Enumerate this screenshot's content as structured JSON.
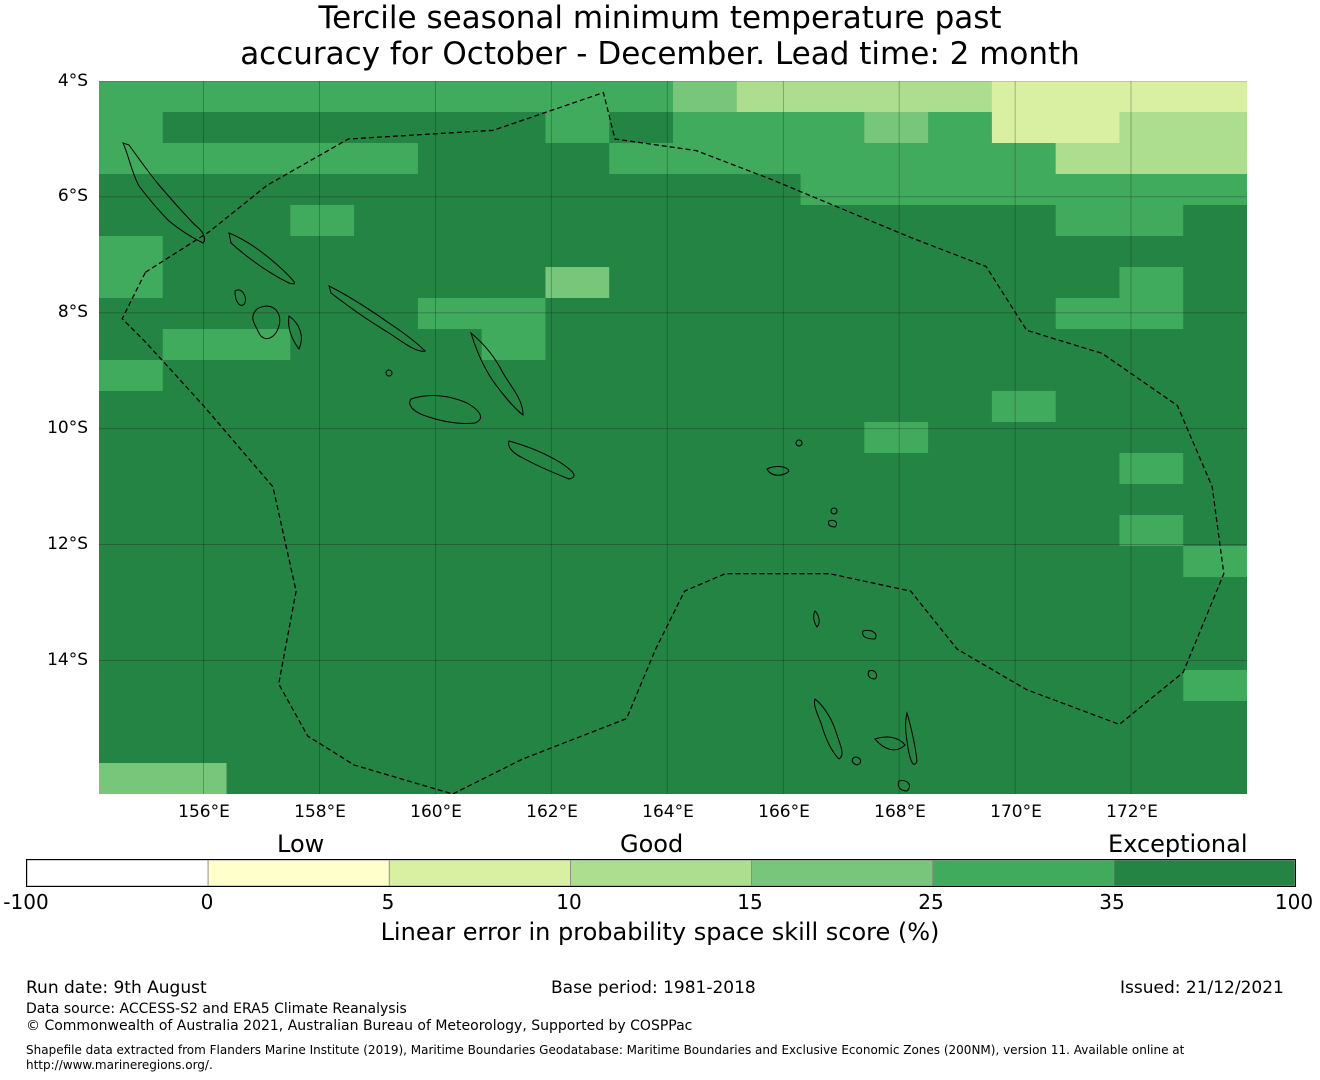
{
  "title": {
    "line1": "Tercile seasonal minimum temperature past",
    "line2": "accuracy for October - December. Lead time: 2 month"
  },
  "map": {
    "lat_labels": [
      "4°S",
      "6°S",
      "8°S",
      "10°S",
      "12°S",
      "14°S"
    ],
    "lon_labels": [
      "156°E",
      "158°E",
      "160°E",
      "162°E",
      "164°E",
      "166°E",
      "168°E",
      "170°E",
      "172°E"
    ],
    "lon_range": [
      154.2,
      174.0
    ],
    "lat_range": [
      -16.3,
      -4.0
    ],
    "grid_step_deg": 0.83,
    "skill_grid_rows": [
      "444444444322221111",
      "455555545444341122",
      "444445554444444222",
      "555555555554444444",
      "555455555555555445",
      "455555555555555555",
      "455555535555555545",
      "555554455555555445",
      "544555455555555555",
      "455555555555555555",
      "555555555555554555",
      "555555555555455555",
      "555555555555555545",
      "555555555555555555",
      "555555555555555545",
      "555555555555555554",
      "555555555555555555",
      "555555555555555555",
      "555555555555555555",
      "555555555555555554",
      "555555555555555555",
      "555555555555555555",
      "335555555555555555"
    ],
    "eez_boundary_lonlat": [
      [
        155.0,
        -7.3
      ],
      [
        156.1,
        -6.6
      ],
      [
        157.1,
        -5.8
      ],
      [
        158.5,
        -5.0
      ],
      [
        161.0,
        -4.85
      ],
      [
        162.9,
        -4.2
      ],
      [
        163.1,
        -5.0
      ],
      [
        164.5,
        -5.2
      ],
      [
        165.8,
        -5.7
      ],
      [
        167.0,
        -6.2
      ],
      [
        168.2,
        -6.7
      ],
      [
        169.5,
        -7.2
      ],
      [
        170.2,
        -8.3
      ],
      [
        171.5,
        -8.7
      ],
      [
        172.8,
        -9.6
      ],
      [
        173.4,
        -11.0
      ],
      [
        173.6,
        -12.5
      ],
      [
        172.9,
        -14.2
      ],
      [
        171.8,
        -15.1
      ],
      [
        170.2,
        -14.5
      ],
      [
        169.0,
        -13.8
      ],
      [
        168.2,
        -12.8
      ],
      [
        166.8,
        -12.5
      ],
      [
        165.0,
        -12.5
      ],
      [
        164.3,
        -12.8
      ],
      [
        163.8,
        -13.8
      ],
      [
        163.3,
        -15.0
      ],
      [
        161.5,
        -15.7
      ],
      [
        160.3,
        -16.3
      ],
      [
        158.6,
        -15.8
      ],
      [
        157.8,
        -15.3
      ],
      [
        157.3,
        -14.4
      ],
      [
        157.6,
        -12.8
      ],
      [
        157.2,
        -11.0
      ],
      [
        156.0,
        -9.6
      ],
      [
        155.0,
        -8.5
      ],
      [
        154.6,
        -8.1
      ],
      [
        155.0,
        -7.3
      ]
    ]
  },
  "colorbar": {
    "category_labels": {
      "low": "Low",
      "good": "Good",
      "exceptional": "Exceptional"
    },
    "ticks": [
      "-100",
      "0",
      "5",
      "10",
      "15",
      "25",
      "35",
      "100"
    ],
    "colors": [
      "#ffffff",
      "#ffffcc",
      "#d9f0a3",
      "#addd8e",
      "#78c679",
      "#41ab5d",
      "#238443"
    ],
    "caption": "Linear error in probability space skill score (%)"
  },
  "footer": {
    "run_date": "Run date: 9th August",
    "base_period": "Base period: 1981-2018",
    "issued": "Issued: 21/12/2021",
    "data_source": "Data source: ACCESS-S2 and ERA5 Climate Reanalysis",
    "copyright": "© Commonwealth of Australia 2021, Australian Bureau of Meteorology, Supported by COSPPac",
    "shapefile_line1": "Shapefile data extracted from Flanders Marine Institute (2019), Maritime Boundaries Geodatabase: Maritime Boundaries and Exclusive Economic Zones (200NM), version 11. Available online at",
    "shapefile_line2": "http://www.marineregions.org/."
  }
}
